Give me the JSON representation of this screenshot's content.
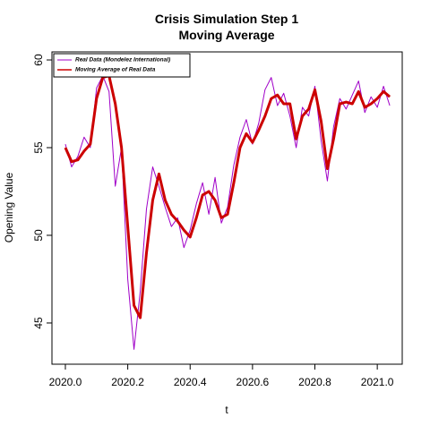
{
  "chart_data": {
    "type": "line",
    "title": [
      "Crisis Simulation Step 1",
      "Moving Average"
    ],
    "x_label": "t",
    "y_label": "Opening Value",
    "x": [
      2020.0,
      2020.02,
      2020.04,
      2020.06,
      2020.08,
      2020.1,
      2020.12,
      2020.14,
      2020.16,
      2020.18,
      2020.2,
      2020.22,
      2020.24,
      2020.26,
      2020.28,
      2020.3,
      2020.32,
      2020.34,
      2020.36,
      2020.38,
      2020.4,
      2020.42,
      2020.44,
      2020.46,
      2020.48,
      2020.5,
      2020.52,
      2020.54,
      2020.56,
      2020.58,
      2020.6,
      2020.62,
      2020.64,
      2020.66,
      2020.68,
      2020.7,
      2020.72,
      2020.74,
      2020.76,
      2020.78,
      2020.8,
      2020.82,
      2020.84,
      2020.86,
      2020.88,
      2020.9,
      2020.92,
      2020.94,
      2020.96,
      2020.98,
      2021.0,
      2021.02,
      2021.04
    ],
    "series": [
      {
        "name": "Real Data (Mondelez International)",
        "color": "#a000c8",
        "width": 1,
        "values": [
          55.2,
          53.9,
          54.5,
          55.6,
          55.0,
          58.4,
          59.1,
          58.2,
          52.8,
          55.0,
          47.5,
          43.5,
          46.8,
          51.5,
          53.9,
          52.8,
          51.6,
          50.5,
          51.0,
          49.3,
          50.3,
          51.8,
          53.0,
          51.2,
          53.3,
          50.7,
          51.6,
          54.0,
          55.6,
          56.6,
          55.2,
          56.4,
          58.3,
          59.0,
          57.4,
          58.1,
          56.8,
          55.0,
          57.3,
          56.8,
          58.5,
          55.4,
          53.1,
          56.2,
          57.8,
          57.2,
          58.0,
          58.8,
          57.0,
          57.9,
          57.3,
          58.5,
          57.4
        ]
      },
      {
        "name": "Moving Average of Real Data",
        "color": "#cc0000",
        "width": 3,
        "values": [
          55.0,
          54.2,
          54.3,
          54.8,
          55.2,
          57.8,
          59.0,
          59.1,
          57.5,
          55.0,
          50.5,
          46.0,
          45.3,
          49.0,
          52.0,
          53.5,
          52.0,
          51.2,
          50.8,
          50.3,
          49.9,
          51.0,
          52.3,
          52.5,
          52.0,
          51.0,
          51.2,
          53.0,
          55.0,
          55.8,
          55.3,
          56.0,
          56.8,
          57.8,
          58.0,
          57.5,
          57.5,
          55.5,
          56.8,
          57.2,
          58.3,
          56.5,
          53.8,
          55.5,
          57.5,
          57.6,
          57.5,
          58.2,
          57.3,
          57.5,
          57.8,
          58.2,
          57.9
        ]
      }
    ],
    "xlim": [
      2019.957,
      2021.08
    ],
    "ylim": [
      42.65,
      60.46
    ],
    "xticks": [
      {
        "value": 2020.0,
        "label": "2020.0"
      },
      2020.2,
      2020.4,
      2020.6,
      2020.8,
      {
        "value": 2021.0,
        "label": "2021.0"
      }
    ],
    "yticks": [
      45,
      50,
      55,
      60
    ],
    "legend": "top-left"
  }
}
